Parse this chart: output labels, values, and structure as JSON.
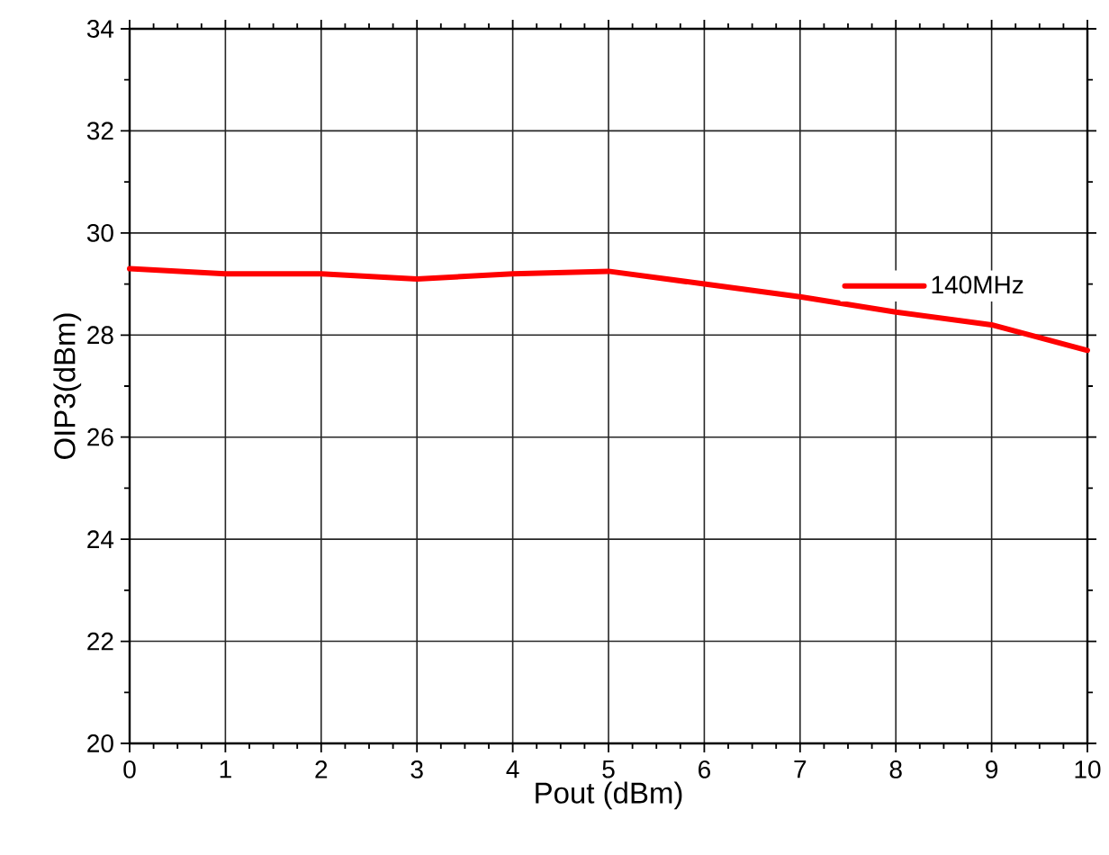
{
  "chart_data": {
    "type": "line",
    "xlabel": "Pout (dBm)",
    "ylabel": "OIP3(dBm)",
    "x": [
      0,
      1,
      2,
      3,
      4,
      5,
      6,
      7,
      8,
      9,
      10
    ],
    "series": [
      {
        "name": "140MHz",
        "color": "#ff0000",
        "values": [
          29.3,
          29.2,
          29.2,
          29.1,
          29.2,
          29.25,
          29.0,
          28.75,
          28.45,
          28.2,
          27.7
        ]
      }
    ],
    "xlim": [
      0,
      10
    ],
    "ylim": [
      20,
      34
    ],
    "xticks": [
      0,
      1,
      2,
      3,
      4,
      5,
      6,
      7,
      8,
      9,
      10
    ],
    "yticks": [
      20,
      22,
      24,
      26,
      28,
      30,
      32,
      34
    ],
    "grid": true,
    "legend": "top right",
    "marker": "none",
    "line_style": "solid"
  }
}
